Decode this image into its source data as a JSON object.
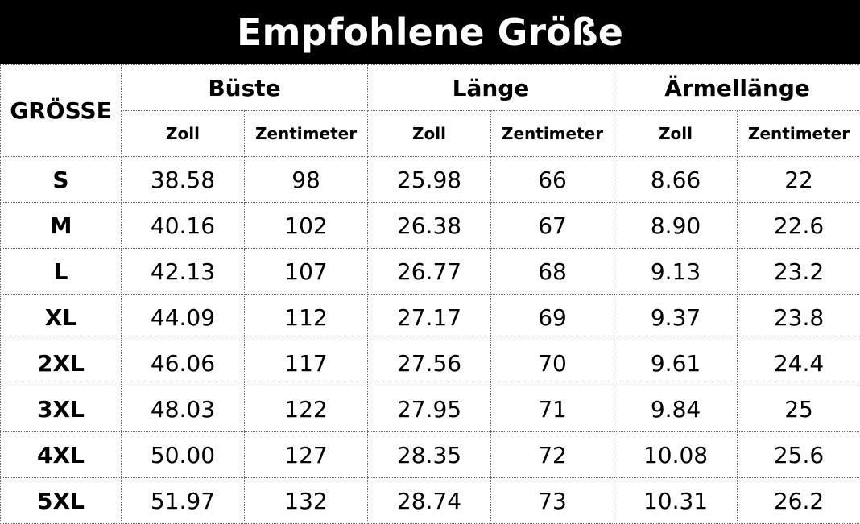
{
  "header": {
    "title": "Empfohlene Größe"
  },
  "table": {
    "size_header": "GRÖSSE",
    "groups": [
      {
        "label": "Büste",
        "subheaders": [
          "Zoll",
          "Zentimeter"
        ]
      },
      {
        "label": "Länge",
        "subheaders": [
          "Zoll",
          "Zentimeter"
        ]
      },
      {
        "label": "Ärmellänge",
        "subheaders": [
          "Zoll",
          "Zentimeter"
        ]
      }
    ],
    "rows": [
      [
        "S",
        "38.58",
        "98",
        "25.98",
        "66",
        "8.66",
        "22"
      ],
      [
        "M",
        "40.16",
        "102",
        "26.38",
        "67",
        "8.90",
        "22.6"
      ],
      [
        "L",
        "42.13",
        "107",
        "26.77",
        "68",
        "9.13",
        "23.2"
      ],
      [
        "XL",
        "44.09",
        "112",
        "27.17",
        "69",
        "9.37",
        "23.8"
      ],
      [
        "2XL",
        "46.06",
        "117",
        "27.56",
        "70",
        "9.61",
        "24.4"
      ],
      [
        "3XL",
        "48.03",
        "122",
        "27.95",
        "71",
        "9.84",
        "25"
      ],
      [
        "4XL",
        "50.00",
        "127",
        "28.35",
        "72",
        "10.08",
        "25.6"
      ],
      [
        "5XL",
        "51.97",
        "132",
        "28.74",
        "73",
        "10.31",
        "26.2"
      ]
    ]
  }
}
